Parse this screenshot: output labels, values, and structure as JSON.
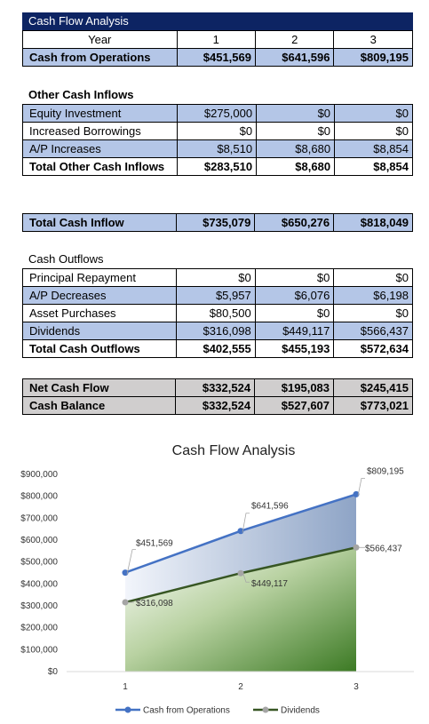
{
  "header": {
    "title": "Cash Flow Analysis"
  },
  "year_row": {
    "label": "Year",
    "years": [
      "1",
      "2",
      "3"
    ]
  },
  "operations": {
    "label": "Cash from Operations",
    "values": [
      "$451,569",
      "$641,596",
      "$809,195"
    ]
  },
  "other_inflows": {
    "title": "Other Cash Inflows",
    "rows": [
      {
        "label": "Equity Investment",
        "values": [
          "$275,000",
          "$0",
          "$0"
        ]
      },
      {
        "label": "Increased Borrowings",
        "values": [
          "$0",
          "$0",
          "$0"
        ]
      },
      {
        "label": "A/P Increases",
        "values": [
          "$8,510",
          "$8,680",
          "$8,854"
        ]
      }
    ],
    "total": {
      "label": "Total Other Cash Inflows",
      "values": [
        "$283,510",
        "$8,680",
        "$8,854"
      ]
    }
  },
  "total_inflow": {
    "label": "Total Cash Inflow",
    "values": [
      "$735,079",
      "$650,276",
      "$818,049"
    ]
  },
  "outflows": {
    "title": "Cash Outflows",
    "rows": [
      {
        "label": "Principal Repayment",
        "values": [
          "$0",
          "$0",
          "$0"
        ]
      },
      {
        "label": "A/P Decreases",
        "values": [
          "$5,957",
          "$6,076",
          "$6,198"
        ]
      },
      {
        "label": "Asset Purchases",
        "values": [
          "$80,500",
          "$0",
          "$0"
        ]
      },
      {
        "label": "Dividends",
        "values": [
          "$316,098",
          "$449,117",
          "$566,437"
        ]
      }
    ],
    "total": {
      "label": "Total Cash Outflows",
      "values": [
        "$402,555",
        "$455,193",
        "$572,634"
      ]
    }
  },
  "net": {
    "net_flow": {
      "label": "Net Cash Flow",
      "values": [
        "$332,524",
        "$195,083",
        "$245,415"
      ]
    },
    "balance": {
      "label": "Cash Balance",
      "values": [
        "$332,524",
        "$527,607",
        "$773,021"
      ]
    }
  },
  "chart_data": {
    "type": "line",
    "title": "Cash Flow Analysis",
    "categories": [
      "1",
      "2",
      "3"
    ],
    "ylim": [
      0,
      900000
    ],
    "yticks": [
      0,
      100000,
      200000,
      300000,
      400000,
      500000,
      600000,
      700000,
      800000,
      900000
    ],
    "ytick_labels": [
      "$0",
      "$100,000",
      "$200,000",
      "$300,000",
      "$400,000",
      "$500,000",
      "$600,000",
      "$700,000",
      "$800,000",
      "$900,000"
    ],
    "grid": false,
    "legend_position": "bottom",
    "series": [
      {
        "name": "Cash from Operations",
        "values": [
          451569,
          641596,
          809195
        ],
        "labels": [
          "$451,569",
          "$641,596",
          "$809,195"
        ],
        "color": "#4472c4",
        "fill": "area-blue"
      },
      {
        "name": "Dividends",
        "values": [
          316098,
          449117,
          566437
        ],
        "labels": [
          "$316,098",
          "$449,117",
          "$566,437"
        ],
        "color": "#375623",
        "fill": "area-green"
      }
    ]
  }
}
